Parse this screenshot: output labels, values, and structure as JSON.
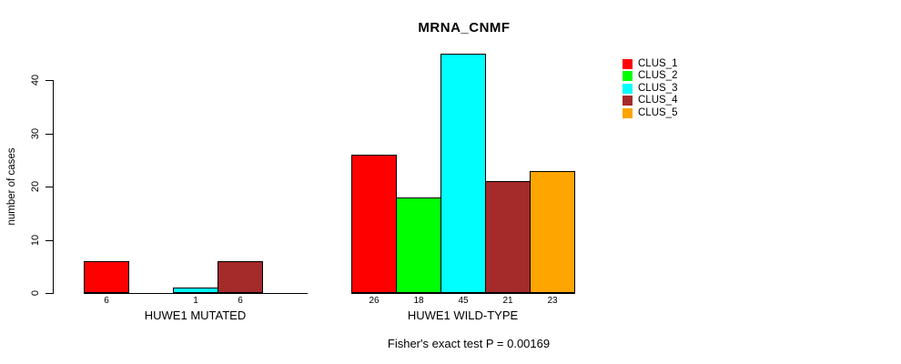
{
  "title": "MRNA_CNMF",
  "footer": "Fisher's exact test P = 0.00169",
  "y_axis": {
    "label": "number of cases",
    "ticks": [
      "0",
      "10",
      "20",
      "30",
      "40"
    ]
  },
  "groups": [
    {
      "label": "HUWE1 MUTATED",
      "bar_labels": [
        "6",
        "",
        "1",
        "6",
        ""
      ]
    },
    {
      "label": "HUWE1 WILD-TYPE",
      "bar_labels": [
        "26",
        "18",
        "45",
        "21",
        "23"
      ]
    }
  ],
  "legend": [
    {
      "label": "CLUS_1",
      "color": "#ff0000"
    },
    {
      "label": "CLUS_2",
      "color": "#00ff00"
    },
    {
      "label": "CLUS_3",
      "color": "#00ffff"
    },
    {
      "label": "CLUS_4",
      "color": "#a52a2a"
    },
    {
      "label": "CLUS_5",
      "color": "#ffa500"
    }
  ],
  "chart_data": {
    "type": "bar",
    "title": "MRNA_CNMF",
    "ylabel": "number of cases",
    "xlabel": "",
    "categories": [
      "HUWE1 MUTATED",
      "HUWE1 WILD-TYPE"
    ],
    "series": [
      {
        "name": "CLUS_1",
        "color": "#ff0000",
        "values": [
          6,
          26
        ]
      },
      {
        "name": "CLUS_2",
        "color": "#00ff00",
        "values": [
          0,
          18
        ]
      },
      {
        "name": "CLUS_3",
        "color": "#00ffff",
        "values": [
          1,
          45
        ]
      },
      {
        "name": "CLUS_4",
        "color": "#a52a2a",
        "values": [
          6,
          21
        ]
      },
      {
        "name": "CLUS_5",
        "color": "#ffa500",
        "values": [
          0,
          23
        ]
      }
    ],
    "bar_value_labels": [
      [
        "6",
        "",
        "1",
        "6",
        ""
      ],
      [
        "26",
        "18",
        "45",
        "21",
        "23"
      ]
    ],
    "yticks": [
      0,
      10,
      20,
      30,
      40
    ],
    "ylim": [
      0,
      45
    ],
    "grid": false,
    "legend_position": "right",
    "legend_entries": [
      "CLUS_1",
      "CLUS_2",
      "CLUS_3",
      "CLUS_4",
      "CLUS_5"
    ],
    "annotation": "Fisher's exact test P = 0.00169"
  }
}
